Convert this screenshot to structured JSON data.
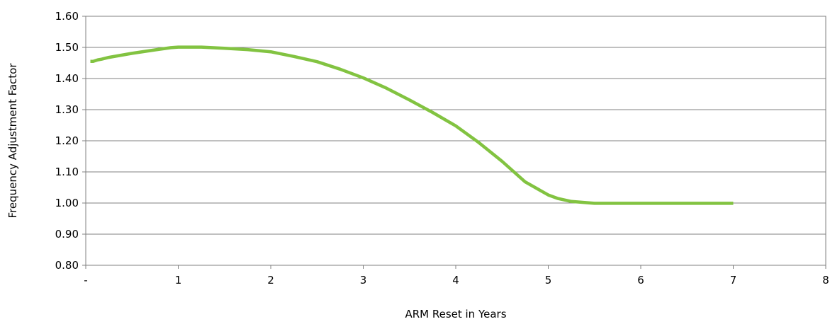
{
  "chart_data": {
    "type": "line",
    "title": "",
    "xlabel": "ARM Reset  in Years",
    "ylabel": "Frequency Adjustment Factor",
    "xlim": [
      0,
      8
    ],
    "ylim": [
      0.8,
      1.6
    ],
    "x_ticks": [
      "-",
      "1",
      "2",
      "3",
      "4",
      "5",
      "6",
      "7",
      "8"
    ],
    "y_ticks": [
      "0.80",
      "0.90",
      "1.00",
      "1.10",
      "1.20",
      "1.30",
      "1.40",
      "1.50",
      "1.60"
    ],
    "grid": "horizontal",
    "legend": "none",
    "series": [
      {
        "color": "#82c341",
        "x": [
          0.05,
          0.08,
          0.13,
          0.17,
          0.25,
          0.5,
          0.75,
          0.92,
          1.0,
          1.25,
          1.5,
          1.75,
          2.0,
          2.25,
          2.5,
          2.75,
          3.0,
          3.25,
          3.5,
          3.75,
          4.0,
          4.25,
          4.5,
          4.75,
          5.0,
          5.1,
          5.25,
          5.5,
          6.0,
          6.5,
          7.0
        ],
        "y": [
          1.455,
          1.455,
          1.46,
          1.462,
          1.468,
          1.481,
          1.492,
          1.499,
          1.501,
          1.501,
          1.497,
          1.493,
          1.486,
          1.471,
          1.454,
          1.43,
          1.402,
          1.369,
          1.331,
          1.291,
          1.248,
          1.194,
          1.134,
          1.068,
          1.026,
          1.015,
          1.005,
          0.999,
          0.999,
          0.999,
          0.999
        ]
      }
    ]
  }
}
